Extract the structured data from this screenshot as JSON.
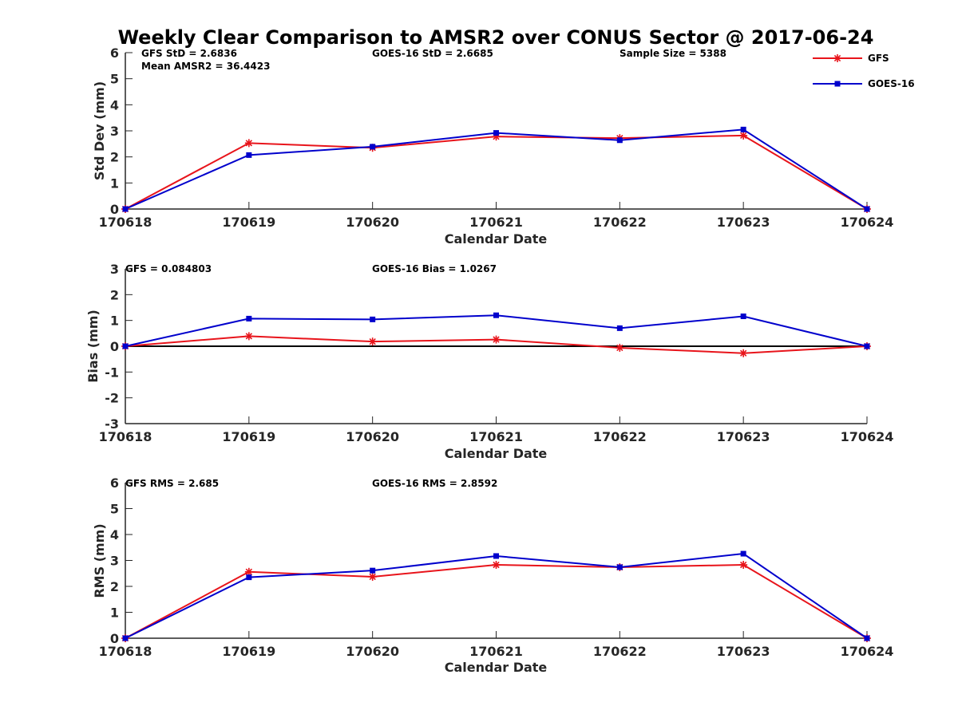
{
  "figure": {
    "title": "Weekly Clear Comparison to AMSR2 over CONUS Sector @ 2017-06-24"
  },
  "colors": {
    "gfs": "#e8141b",
    "goes16": "#0000cc",
    "axis": "#262626",
    "zero_line": "#000000"
  },
  "legend": {
    "placement": "top-right",
    "entries": [
      {
        "label": "GFS",
        "color": "#e8141b",
        "marker": "asterisk"
      },
      {
        "label": "GOES-16",
        "color": "#0000cc",
        "marker": "square"
      }
    ]
  },
  "chart_data": [
    {
      "type": "line",
      "xlabel": "Calendar Date",
      "ylabel": "Std Dev (mm)",
      "categories": [
        "170618",
        "170619",
        "170620",
        "170621",
        "170622",
        "170623",
        "170624"
      ],
      "ylim": [
        0,
        6
      ],
      "yticks": [
        0,
        1,
        2,
        3,
        4,
        5,
        6
      ],
      "zero_line": false,
      "annotations": {
        "left1": "GFS StD = 2.6836",
        "left2": "Mean AMSR2 = 36.4423",
        "middle": "GOES-16 StD = 2.6685",
        "right": "Sample Size = 5388"
      },
      "series": [
        {
          "name": "GFS",
          "color": "#e8141b",
          "marker": "asterisk",
          "values": [
            0,
            2.53,
            2.35,
            2.78,
            2.72,
            2.82,
            0
          ]
        },
        {
          "name": "GOES-16",
          "color": "#0000cc",
          "marker": "square",
          "values": [
            0,
            2.07,
            2.39,
            2.92,
            2.64,
            3.05,
            0
          ]
        }
      ]
    },
    {
      "type": "line",
      "xlabel": "Calendar Date",
      "ylabel": "Bias (mm)",
      "categories": [
        "170618",
        "170619",
        "170620",
        "170621",
        "170622",
        "170623",
        "170624"
      ],
      "ylim": [
        -3,
        3
      ],
      "yticks": [
        -3,
        -2,
        -1,
        0,
        1,
        2,
        3
      ],
      "zero_line": true,
      "annotations": {
        "left1": "GFS = 0.084803",
        "middle": "GOES-16 Bias  = 1.0267"
      },
      "series": [
        {
          "name": "GFS",
          "color": "#e8141b",
          "marker": "asterisk",
          "values": [
            0,
            0.39,
            0.18,
            0.26,
            -0.06,
            -0.27,
            0
          ]
        },
        {
          "name": "GOES-16",
          "color": "#0000cc",
          "marker": "square",
          "values": [
            0,
            1.07,
            1.04,
            1.2,
            0.7,
            1.16,
            0
          ]
        }
      ]
    },
    {
      "type": "line",
      "xlabel": "Calendar Date",
      "ylabel": "RMS (mm)",
      "categories": [
        "170618",
        "170619",
        "170620",
        "170621",
        "170622",
        "170623",
        "170624"
      ],
      "ylim": [
        0,
        6
      ],
      "yticks": [
        0,
        1,
        2,
        3,
        4,
        5,
        6
      ],
      "zero_line": false,
      "annotations": {
        "left1": "GFS RMS = 2.685",
        "middle": "GOES-16 RMS = 2.8592"
      },
      "series": [
        {
          "name": "GFS",
          "color": "#e8141b",
          "marker": "asterisk",
          "values": [
            0,
            2.56,
            2.37,
            2.83,
            2.74,
            2.83,
            0
          ]
        },
        {
          "name": "GOES-16",
          "color": "#0000cc",
          "marker": "square",
          "values": [
            0,
            2.35,
            2.61,
            3.17,
            2.74,
            3.26,
            0
          ]
        }
      ]
    }
  ]
}
